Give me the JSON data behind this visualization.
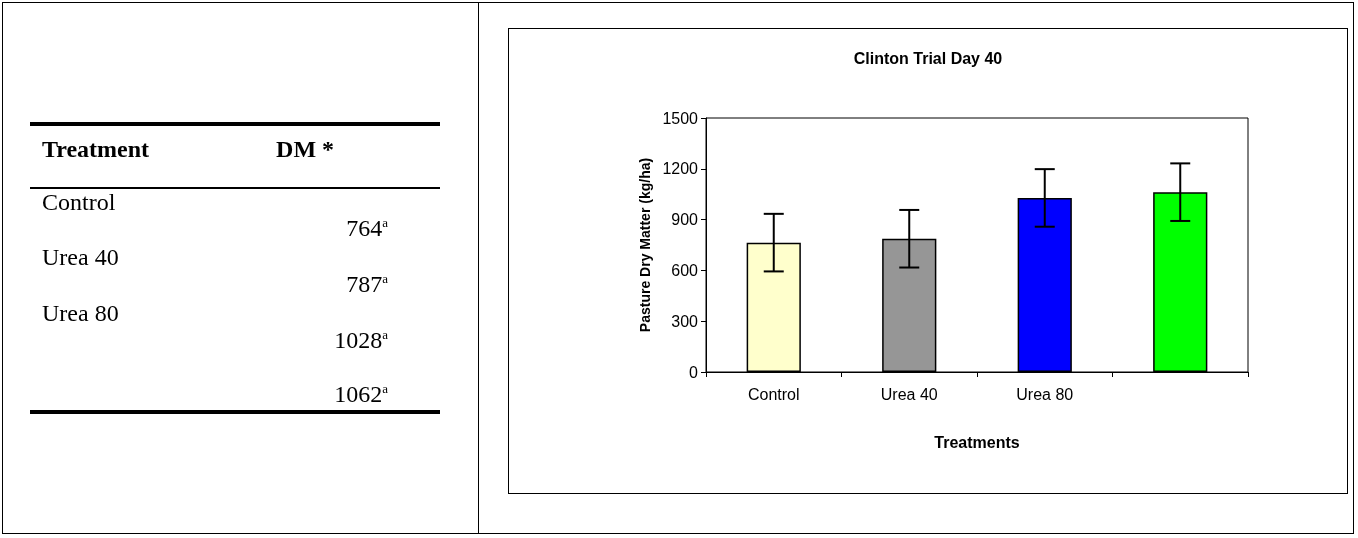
{
  "chart_data": {
    "type": "bar",
    "title": "Clinton Trial Day 40",
    "xlabel": "Treatments",
    "ylabel": "Pasture Dry Matter (kg/ha)",
    "categories": [
      "Control",
      "Urea 40",
      "Urea 80",
      null
    ],
    "values": [
      764,
      787,
      1028,
      1062
    ],
    "colors": [
      "#ffffcc",
      "#969696",
      "#0000ff",
      "#00ff00"
    ],
    "errors": [
      170,
      170,
      170,
      170
    ],
    "annotations": [
      "Treatment",
      "DM *",
      "764$^{a}$",
      "787$^{a}$",
      "1028$^{a}$",
      "1062$^{a}$"
    ],
    "ylim": [
      0,
      1500
    ],
    "yticks": [
      0,
      300,
      600,
      900,
      1200,
      1500
    ],
    "grid": false
  }
}
